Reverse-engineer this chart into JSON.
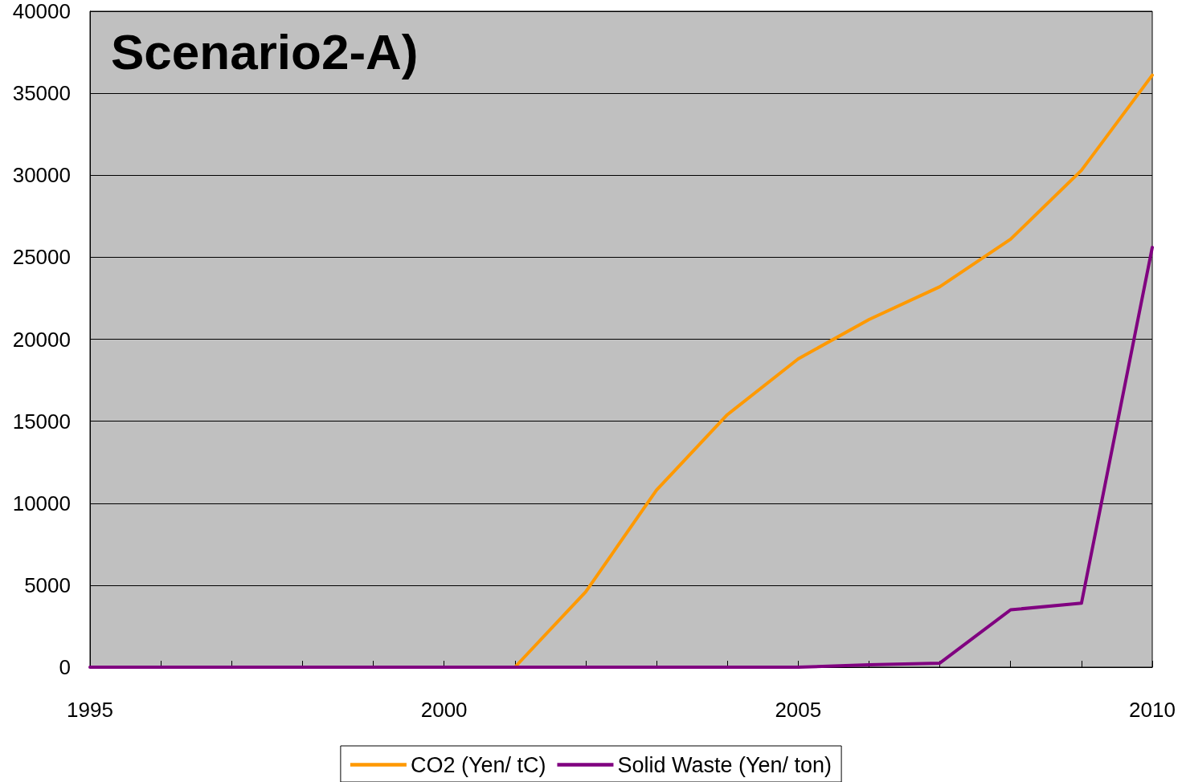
{
  "chart_data": {
    "type": "line",
    "title": "Scenario2-A)",
    "x": [
      1995,
      1996,
      1997,
      1998,
      1999,
      2000,
      2001,
      2002,
      2003,
      2004,
      2005,
      2006,
      2007,
      2008,
      2009,
      2010
    ],
    "series": [
      {
        "name": "CO2 (Yen/ tC)",
        "color": "#ff9900",
        "values": [
          null,
          null,
          null,
          null,
          null,
          null,
          0,
          4600,
          10800,
          15400,
          18800,
          21200,
          23200,
          26100,
          30300,
          36100
        ]
      },
      {
        "name": "Solid Waste (Yen/ ton)",
        "color": "#800080",
        "values": [
          0,
          0,
          0,
          0,
          0,
          0,
          0,
          0,
          0,
          0,
          0,
          150,
          250,
          3500,
          3900,
          25600
        ]
      }
    ],
    "xlim": [
      1995,
      2010
    ],
    "xticks": [
      1995,
      {
        "value": 1996,
        "label": null
      },
      {
        "value": 1997,
        "label": null
      },
      {
        "value": 1998,
        "label": null
      },
      {
        "value": 1999,
        "label": null
      },
      2000,
      {
        "value": 2001,
        "label": null
      },
      {
        "value": 2002,
        "label": null
      },
      {
        "value": 2003,
        "label": null
      },
      {
        "value": 2004,
        "label": null
      },
      2005,
      {
        "value": 2006,
        "label": null
      },
      {
        "value": 2007,
        "label": null
      },
      {
        "value": 2008,
        "label": null
      },
      {
        "value": 2009,
        "label": null
      },
      2010
    ],
    "ylim": [
      0,
      40000
    ],
    "yticks": [
      0,
      5000,
      10000,
      15000,
      20000,
      25000,
      30000,
      35000,
      40000
    ],
    "grid": "y",
    "legend": "bottom",
    "marker": "none",
    "line_style": "solid"
  }
}
